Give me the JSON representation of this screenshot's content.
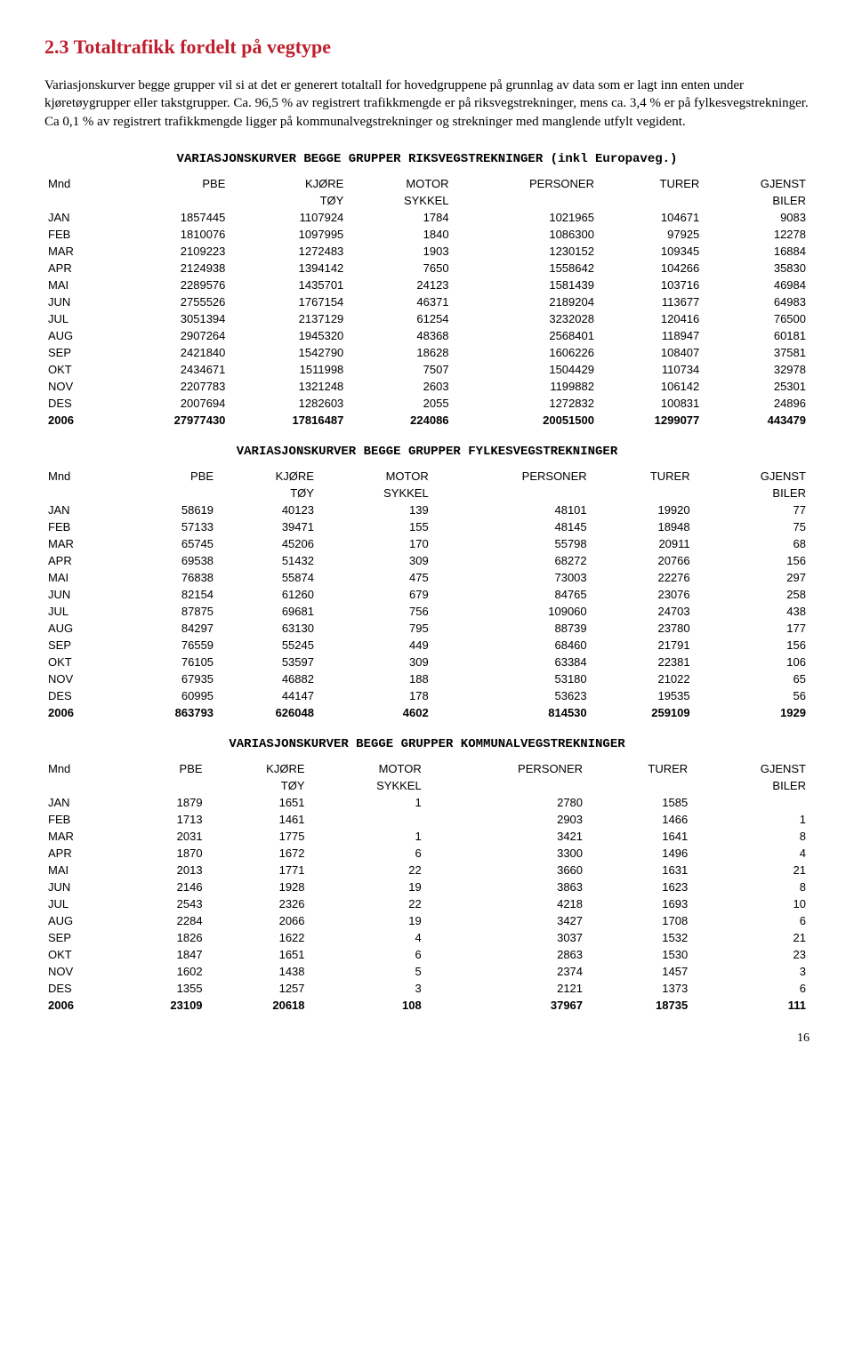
{
  "heading": "2.3 Totaltrafikk fordelt på vegtype",
  "intro": "Variasjonskurver begge grupper vil si at det er generert totaltall for hovedgruppene på grunnlag av data som er lagt inn enten under kjøretøygrupper eller takstgrupper. Ca. 96,5 % av registrert trafikkmengde er på riksvegstrekninger, mens ca. 3,4 % er på fylkesvegstrekninger. Ca 0,1 % av registrert trafikkmengde ligger på kommunalvegstrekninger og strekninger med manglende utfylt vegident.",
  "columns": [
    "Mnd",
    "PBE",
    "KJØRE",
    "MOTOR",
    "PERSONER",
    "TURER",
    "GJENST"
  ],
  "subcolumns": [
    "",
    "",
    "TØY",
    "SYKKEL",
    "",
    "",
    "BILER"
  ],
  "tables": [
    {
      "title": "VARIASJONSKURVER BEGGE GRUPPER RIKSVEGSTREKNINGER (inkl Europaveg.)",
      "rows": [
        [
          "JAN",
          "1857445",
          "1107924",
          "1784",
          "1021965",
          "104671",
          "9083"
        ],
        [
          "FEB",
          "1810076",
          "1097995",
          "1840",
          "1086300",
          "97925",
          "12278"
        ],
        [
          "MAR",
          "2109223",
          "1272483",
          "1903",
          "1230152",
          "109345",
          "16884"
        ],
        [
          "APR",
          "2124938",
          "1394142",
          "7650",
          "1558642",
          "104266",
          "35830"
        ],
        [
          "MAI",
          "2289576",
          "1435701",
          "24123",
          "1581439",
          "103716",
          "46984"
        ],
        [
          "JUN",
          "2755526",
          "1767154",
          "46371",
          "2189204",
          "113677",
          "64983"
        ],
        [
          "JUL",
          "3051394",
          "2137129",
          "61254",
          "3232028",
          "120416",
          "76500"
        ],
        [
          "AUG",
          "2907264",
          "1945320",
          "48368",
          "2568401",
          "118947",
          "60181"
        ],
        [
          "SEP",
          "2421840",
          "1542790",
          "18628",
          "1606226",
          "108407",
          "37581"
        ],
        [
          "OKT",
          "2434671",
          "1511998",
          "7507",
          "1504429",
          "110734",
          "32978"
        ],
        [
          "NOV",
          "2207783",
          "1321248",
          "2603",
          "1199882",
          "106142",
          "25301"
        ],
        [
          "DES",
          "2007694",
          "1282603",
          "2055",
          "1272832",
          "100831",
          "24896"
        ]
      ],
      "total": [
        "2006",
        "27977430",
        "17816487",
        "224086",
        "20051500",
        "1299077",
        "443479"
      ]
    },
    {
      "title": "VARIASJONSKURVER BEGGE GRUPPER FYLKESVEGSTREKNINGER",
      "rows": [
        [
          "JAN",
          "58619",
          "40123",
          "139",
          "48101",
          "19920",
          "77"
        ],
        [
          "FEB",
          "57133",
          "39471",
          "155",
          "48145",
          "18948",
          "75"
        ],
        [
          "MAR",
          "65745",
          "45206",
          "170",
          "55798",
          "20911",
          "68"
        ],
        [
          "APR",
          "69538",
          "51432",
          "309",
          "68272",
          "20766",
          "156"
        ],
        [
          "MAI",
          "76838",
          "55874",
          "475",
          "73003",
          "22276",
          "297"
        ],
        [
          "JUN",
          "82154",
          "61260",
          "679",
          "84765",
          "23076",
          "258"
        ],
        [
          "JUL",
          "87875",
          "69681",
          "756",
          "109060",
          "24703",
          "438"
        ],
        [
          "AUG",
          "84297",
          "63130",
          "795",
          "88739",
          "23780",
          "177"
        ],
        [
          "SEP",
          "76559",
          "55245",
          "449",
          "68460",
          "21791",
          "156"
        ],
        [
          "OKT",
          "76105",
          "53597",
          "309",
          "63384",
          "22381",
          "106"
        ],
        [
          "NOV",
          "67935",
          "46882",
          "188",
          "53180",
          "21022",
          "65"
        ],
        [
          "DES",
          "60995",
          "44147",
          "178",
          "53623",
          "19535",
          "56"
        ]
      ],
      "total": [
        "2006",
        "863793",
        "626048",
        "4602",
        "814530",
        "259109",
        "1929"
      ]
    },
    {
      "title": "VARIASJONSKURVER BEGGE GRUPPER KOMMUNALVEGSTREKNINGER",
      "rows": [
        [
          "JAN",
          "1879",
          "1651",
          "1",
          "2780",
          "1585",
          ""
        ],
        [
          "FEB",
          "1713",
          "1461",
          "",
          "2903",
          "1466",
          "1"
        ],
        [
          "MAR",
          "2031",
          "1775",
          "1",
          "3421",
          "1641",
          "8"
        ],
        [
          "APR",
          "1870",
          "1672",
          "6",
          "3300",
          "1496",
          "4"
        ],
        [
          "MAI",
          "2013",
          "1771",
          "22",
          "3660",
          "1631",
          "21"
        ],
        [
          "JUN",
          "2146",
          "1928",
          "19",
          "3863",
          "1623",
          "8"
        ],
        [
          "JUL",
          "2543",
          "2326",
          "22",
          "4218",
          "1693",
          "10"
        ],
        [
          "AUG",
          "2284",
          "2066",
          "19",
          "3427",
          "1708",
          "6"
        ],
        [
          "SEP",
          "1826",
          "1622",
          "4",
          "3037",
          "1532",
          "21"
        ],
        [
          "OKT",
          "1847",
          "1651",
          "6",
          "2863",
          "1530",
          "23"
        ],
        [
          "NOV",
          "1602",
          "1438",
          "5",
          "2374",
          "1457",
          "3"
        ],
        [
          "DES",
          "1355",
          "1257",
          "3",
          "2121",
          "1373",
          "6"
        ]
      ],
      "total": [
        "2006",
        "23109",
        "20618",
        "108",
        "37967",
        "18735",
        "111"
      ]
    }
  ],
  "pageNumber": "16"
}
